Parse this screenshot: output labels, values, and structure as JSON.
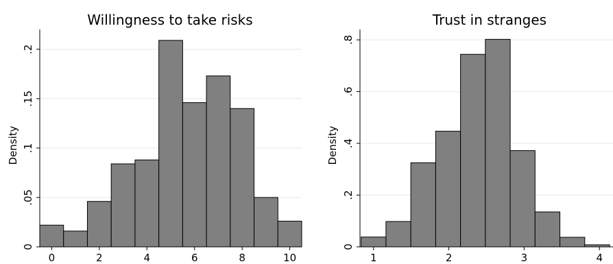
{
  "chart_data": [
    {
      "type": "bar",
      "title": "Willingness to take risks",
      "ylabel": "Density",
      "xlabel": "",
      "bin_width": 1,
      "bin_centers": [
        0,
        1,
        2,
        3,
        4,
        5,
        6,
        7,
        8,
        9,
        10
      ],
      "values": [
        0.022,
        0.016,
        0.046,
        0.084,
        0.088,
        0.209,
        0.146,
        0.173,
        0.14,
        0.05,
        0.026
      ],
      "xticks": [
        0,
        2,
        4,
        6,
        8,
        10
      ],
      "xtick_labels": [
        "0",
        "2",
        "4",
        "6",
        "8",
        "10"
      ],
      "yticks": [
        0,
        0.05,
        0.1,
        0.15,
        0.2
      ],
      "ytick_labels": [
        "0",
        ".05",
        ".1",
        ".15",
        ".2"
      ],
      "xlim": [
        -0.5,
        10.5
      ],
      "ylim": [
        0,
        0.22
      ],
      "grid": true
    },
    {
      "type": "bar",
      "title": "Trust in stranges",
      "ylabel": "Density",
      "xlabel": "",
      "bin_width": 0.33,
      "bin_centers": [
        1.0,
        1.33,
        1.66,
        1.99,
        2.32,
        2.65,
        2.98,
        3.31,
        3.64,
        3.97
      ],
      "values": [
        0.038,
        0.098,
        0.325,
        0.447,
        0.744,
        0.802,
        0.372,
        0.135,
        0.037,
        0.008
      ],
      "xticks": [
        1,
        2,
        3,
        4
      ],
      "xtick_labels": [
        "1",
        "2",
        "3",
        "4"
      ],
      "yticks": [
        0,
        0.2,
        0.4,
        0.6,
        0.8
      ],
      "ytick_labels": [
        "0",
        ".2",
        ".4",
        ".6",
        ".8"
      ],
      "xlim": [
        0.82,
        4.18
      ],
      "ylim": [
        0,
        0.84
      ],
      "grid": true
    }
  ]
}
